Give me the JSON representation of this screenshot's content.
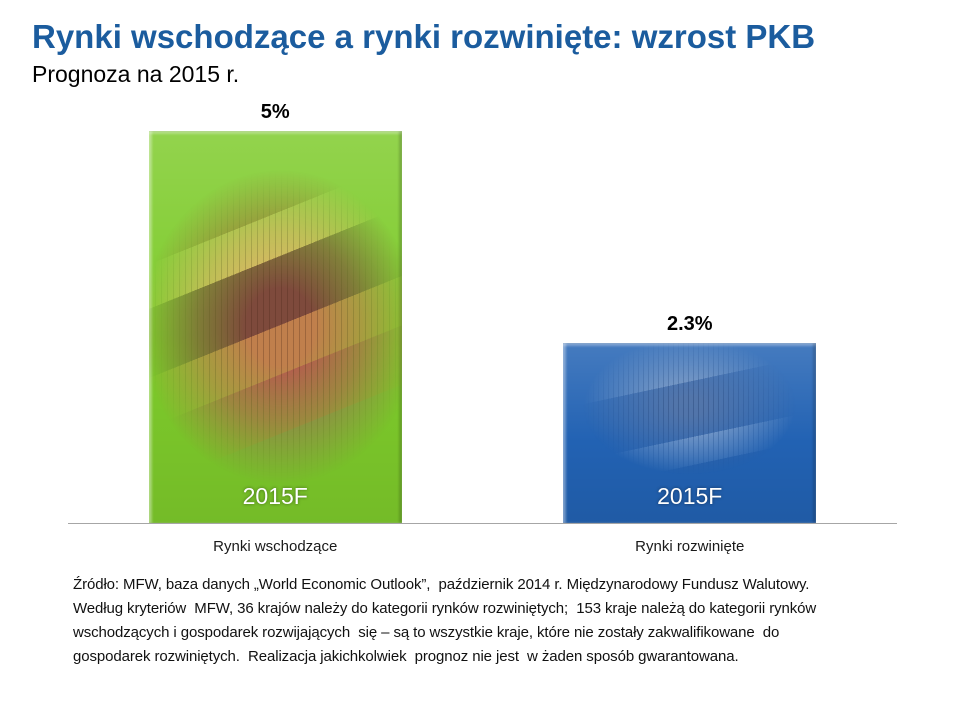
{
  "chart_data": {
    "type": "bar",
    "title": "Rynki wschodzące a rynki rozwinięte: wzrost PKB",
    "subtitle": "Prognoza na 2015 r.",
    "categories": [
      "Rynki wschodzące",
      "Rynki rozwinięte"
    ],
    "values": [
      5,
      2.3
    ],
    "unit": "%",
    "data_labels": [
      "5%",
      "2.3%"
    ],
    "bar_labels": [
      "2015F",
      "2015F"
    ],
    "colors": [
      "#7ecb2b",
      "#2262b3"
    ],
    "ylim": [
      0,
      5
    ],
    "grid": false,
    "legend": "none"
  },
  "colors": {
    "title": "#1b5c9e",
    "baseline": "#a6a6a6"
  },
  "source": {
    "lines": [
      "Źródło: MFW, baza danych „World Economic Outlook”,  październik 2014 r. Międzynarodowy Fundusz Walutowy.",
      "Według kryteriów  MFW, 36 krajów należy do kategorii rynków rozwiniętych;  153 kraje należą do kategorii rynków",
      "wschodzących i gospodarek rozwijających  się – są to wszystkie kraje, które nie zostały zakwalifikowane  do",
      "gospodarek rozwiniętych.  Realizacja jakichkolwiek  prognoz nie jest  w żaden sposób gwarantowana."
    ]
  }
}
